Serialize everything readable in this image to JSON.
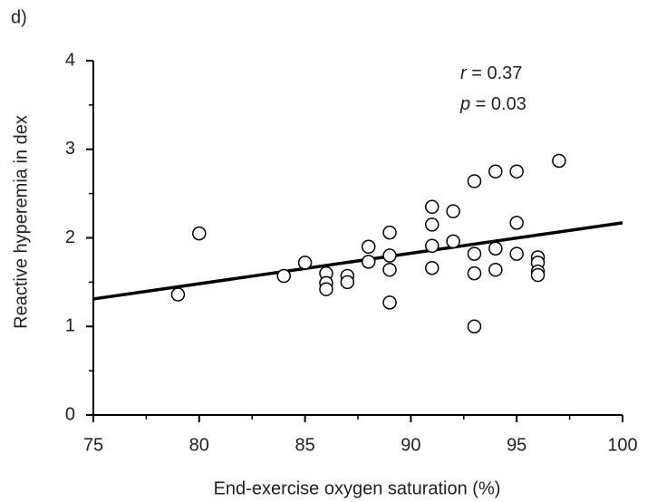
{
  "chart_data": {
    "type": "scatter",
    "panel_label": "d)",
    "x_label": "End-exercise oxygen saturation (%)",
    "y_label": "Reactive hyperemia in dex",
    "annotations": [
      {
        "symbol": "r",
        "text": " = 0.37"
      },
      {
        "symbol": "p",
        "text": " = 0.03"
      }
    ],
    "xlim": [
      75,
      100
    ],
    "ylim": [
      0,
      4
    ],
    "xticks": [
      75,
      80,
      85,
      90,
      95,
      100
    ],
    "yticks": [
      0,
      1,
      2,
      3,
      4
    ],
    "xticks_minor": [
      77.5,
      82.5,
      87.5,
      92.5,
      97.5
    ],
    "yticks_minor": [
      0.5,
      1.5,
      2.5,
      3.5
    ],
    "marker_color": "#000000",
    "x": [
      79,
      80,
      84,
      85,
      86,
      86,
      86,
      87,
      87,
      88,
      88,
      89,
      89,
      89,
      89,
      91,
      91,
      91,
      91,
      92,
      92,
      93,
      93,
      93,
      93,
      94,
      94,
      94,
      95,
      95,
      95,
      96,
      96,
      96,
      96,
      97
    ],
    "values": [
      1.36,
      2.05,
      1.57,
      1.72,
      1.6,
      1.49,
      1.42,
      1.57,
      1.5,
      1.9,
      1.73,
      2.06,
      1.8,
      1.64,
      1.27,
      2.35,
      2.15,
      1.91,
      1.66,
      2.3,
      1.96,
      2.64,
      1.82,
      1.6,
      1.0,
      2.75,
      1.88,
      1.64,
      2.75,
      2.17,
      1.82,
      1.78,
      1.72,
      1.62,
      1.58,
      2.87
    ],
    "trend_line": {
      "x": [
        75,
        100
      ],
      "values": [
        1.31,
        2.17
      ],
      "color": "#000000"
    }
  }
}
